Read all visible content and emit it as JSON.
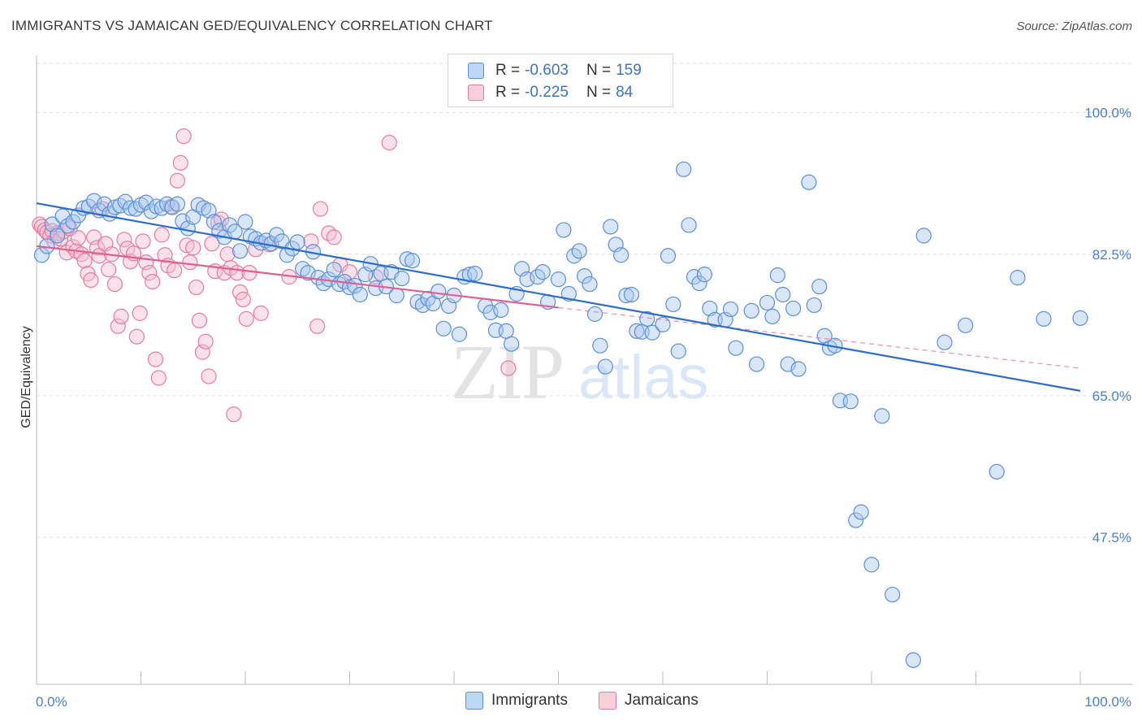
{
  "header": {
    "title": "IMMIGRANTS VS JAMAICAN GED/EQUIVALENCY CORRELATION CHART",
    "source": "Source: ZipAtlas.com"
  },
  "legend": {
    "immigrants": {
      "r_label": "R =",
      "r_value": "-0.603",
      "n_label": "N =",
      "n_value": "159"
    },
    "jamaicans": {
      "r_label": "R =",
      "r_value": "-0.225",
      "n_label": "N =",
      "n_value": "84"
    }
  },
  "bottom_legend": {
    "immigrants": "Immigrants",
    "jamaicans": "Jamaicans"
  },
  "colors": {
    "immigrants_fill": "#a8c8f0",
    "immigrants_stroke": "#5b8fd8",
    "immigrants_line": "#2b6cd0",
    "jamaicans_fill": "#f7bfd0",
    "jamaicans_stroke": "#e77ba0",
    "jamaicans_line": "#e0608e",
    "grid": "#dcdcdc",
    "tick_label": "#4a7fd0"
  },
  "chart_data": {
    "type": "scatter",
    "xlabel": "",
    "ylabel": "GED/Equivalency",
    "xlim": [
      0,
      100
    ],
    "ylim": [
      29.3,
      106.1
    ],
    "x_tick_labels": [
      "0.0%",
      "100.0%"
    ],
    "y_ticks": [
      100.0,
      82.5,
      65.0,
      47.5
    ],
    "y_tick_labels": [
      "100.0%",
      "82.5%",
      "65.0%",
      "47.5%"
    ],
    "grid": true,
    "legend_position": "top-center",
    "watermark": {
      "zip": "ZIP",
      "atlas": "atlas"
    },
    "series": [
      {
        "name": "Immigrants",
        "r": -0.603,
        "n": 159,
        "trend": {
          "x": [
            0,
            100
          ],
          "y": [
            88.8,
            65.6
          ]
        },
        "points": [
          [
            0.5,
            82.4
          ],
          [
            1,
            83.5
          ],
          [
            1.5,
            86.2
          ],
          [
            2,
            84.8
          ],
          [
            2.5,
            87.2
          ],
          [
            3,
            86
          ],
          [
            3.5,
            86.5
          ],
          [
            4,
            87.3
          ],
          [
            4.5,
            88.2
          ],
          [
            5,
            88.4
          ],
          [
            5.5,
            89.1
          ],
          [
            6,
            87.9
          ],
          [
            6.5,
            88.7
          ],
          [
            7,
            87.5
          ],
          [
            7.5,
            88.3
          ],
          [
            8,
            88.5
          ],
          [
            8.5,
            89
          ],
          [
            9,
            88.2
          ],
          [
            9.5,
            88.1
          ],
          [
            10,
            88.6
          ],
          [
            10.5,
            88.9
          ],
          [
            11,
            87.8
          ],
          [
            11.5,
            88.4
          ],
          [
            12,
            88.2
          ],
          [
            12.5,
            88.7
          ],
          [
            13,
            88.3
          ],
          [
            13.5,
            88.7
          ],
          [
            14,
            86.6
          ],
          [
            14.5,
            85.7
          ],
          [
            15,
            87.1
          ],
          [
            15.5,
            88.6
          ],
          [
            16,
            88.2
          ],
          [
            16.5,
            87.9
          ],
          [
            17,
            86.5
          ],
          [
            17.5,
            85.4
          ],
          [
            18,
            84.6
          ],
          [
            18.5,
            86.1
          ],
          [
            19,
            85.3
          ],
          [
            19.5,
            82.9
          ],
          [
            20,
            86.5
          ],
          [
            20.5,
            84.7
          ],
          [
            21,
            84.4
          ],
          [
            21.5,
            83.9
          ],
          [
            22,
            84.2
          ],
          [
            22.5,
            83.8
          ],
          [
            23,
            84.9
          ],
          [
            23.5,
            84.1
          ],
          [
            24,
            82.4
          ],
          [
            24.5,
            83.2
          ],
          [
            25,
            84
          ],
          [
            25.5,
            80.7
          ],
          [
            26,
            80.2
          ],
          [
            26.5,
            82.8
          ],
          [
            27,
            79.6
          ],
          [
            27.5,
            78.9
          ],
          [
            28,
            79.4
          ],
          [
            28.5,
            80.6
          ],
          [
            29,
            78.8
          ],
          [
            29.5,
            79.1
          ],
          [
            30,
            78.4
          ],
          [
            30.5,
            78.6
          ],
          [
            31,
            77.5
          ],
          [
            31.5,
            80
          ],
          [
            32,
            81.3
          ],
          [
            32.5,
            78.3
          ],
          [
            33,
            80.1
          ],
          [
            33.5,
            78.5
          ],
          [
            34,
            80.3
          ],
          [
            34.5,
            77.4
          ],
          [
            35,
            79.5
          ],
          [
            35.5,
            81.9
          ],
          [
            36,
            81.7
          ],
          [
            36.5,
            76.6
          ],
          [
            37,
            76.2
          ],
          [
            37.5,
            77
          ],
          [
            38,
            76.4
          ],
          [
            38.5,
            77.9
          ],
          [
            39,
            73.3
          ],
          [
            39.5,
            76.1
          ],
          [
            40,
            77.4
          ],
          [
            40.5,
            72.6
          ],
          [
            41,
            79.7
          ],
          [
            41.5,
            80
          ],
          [
            42,
            80.1
          ],
          [
            43,
            76.1
          ],
          [
            43.5,
            75.3
          ],
          [
            44,
            73.1
          ],
          [
            44.5,
            75.6
          ],
          [
            45,
            73
          ],
          [
            45.5,
            71.4
          ],
          [
            46,
            77.6
          ],
          [
            46.5,
            80.7
          ],
          [
            47,
            79.4
          ],
          [
            48,
            79.7
          ],
          [
            48.5,
            80.3
          ],
          [
            49,
            76.6
          ],
          [
            50,
            79.4
          ],
          [
            50.5,
            85.5
          ],
          [
            51,
            77.6
          ],
          [
            51.5,
            82.3
          ],
          [
            52,
            82.9
          ],
          [
            52.5,
            79.8
          ],
          [
            53,
            78.8
          ],
          [
            53.5,
            75.1
          ],
          [
            54,
            71.2
          ],
          [
            54.5,
            68.6
          ],
          [
            55,
            85.9
          ],
          [
            55.5,
            83.7
          ],
          [
            56,
            82.4
          ],
          [
            56.5,
            77.4
          ],
          [
            57,
            77.5
          ],
          [
            57.5,
            73
          ],
          [
            58,
            72.9
          ],
          [
            58.5,
            74.5
          ],
          [
            59,
            72.8
          ],
          [
            60,
            73.8
          ],
          [
            60.5,
            82.3
          ],
          [
            61,
            76.3
          ],
          [
            61.5,
            70.5
          ],
          [
            62,
            93
          ],
          [
            62.5,
            86.1
          ],
          [
            63,
            79.7
          ],
          [
            63.5,
            78.9
          ],
          [
            64,
            80
          ],
          [
            64.5,
            75.8
          ],
          [
            65,
            74.4
          ],
          [
            66,
            74.4
          ],
          [
            66.5,
            75.7
          ],
          [
            67,
            70.9
          ],
          [
            68.5,
            75.5
          ],
          [
            69,
            68.9
          ],
          [
            70,
            76.5
          ],
          [
            70.5,
            74.8
          ],
          [
            71,
            79.9
          ],
          [
            71.5,
            77.5
          ],
          [
            72,
            68.9
          ],
          [
            72.5,
            75.8
          ],
          [
            73,
            68.3
          ],
          [
            74,
            91.4
          ],
          [
            74.5,
            76.2
          ],
          [
            75,
            78.5
          ],
          [
            75.5,
            72.4
          ],
          [
            76,
            70.9
          ],
          [
            76.5,
            71.2
          ],
          [
            77,
            64.4
          ],
          [
            78,
            64.3
          ],
          [
            78.5,
            49.6
          ],
          [
            79,
            50.6
          ],
          [
            80,
            44.1
          ],
          [
            81,
            62.5
          ],
          [
            82,
            40.4
          ],
          [
            84,
            32.3
          ],
          [
            85,
            84.8
          ],
          [
            87,
            71.6
          ],
          [
            89,
            73.7
          ],
          [
            92,
            55.6
          ],
          [
            94,
            79.6
          ],
          [
            96.5,
            74.5
          ],
          [
            100,
            74.6
          ]
        ]
      },
      {
        "name": "Jamaicans",
        "r": -0.225,
        "n": 84,
        "trend": {
          "x": [
            0,
            50
          ],
          "y": [
            83.5,
            75.9
          ]
        },
        "trend_extension": {
          "x": [
            50,
            100
          ],
          "y": [
            75.9,
            68.4
          ]
        },
        "points": [
          [
            0.3,
            86.2
          ],
          [
            0.5,
            85.9
          ],
          [
            0.8,
            85.5
          ],
          [
            1,
            85.2
          ],
          [
            1.3,
            84.8
          ],
          [
            1.5,
            85.4
          ],
          [
            1.7,
            84.1
          ],
          [
            2,
            85.1
          ],
          [
            2.3,
            84.4
          ],
          [
            2.6,
            85.3
          ],
          [
            2.9,
            82.7
          ],
          [
            3.2,
            85.7
          ],
          [
            3.5,
            83.4
          ],
          [
            3.8,
            82.9
          ],
          [
            4,
            84.5
          ],
          [
            4.3,
            82.5
          ],
          [
            4.6,
            81.7
          ],
          [
            4.9,
            80.1
          ],
          [
            5.2,
            79.3
          ],
          [
            5.5,
            84.6
          ],
          [
            5.8,
            83.3
          ],
          [
            6,
            82.3
          ],
          [
            6.3,
            88.1
          ],
          [
            6.6,
            83.8
          ],
          [
            6.9,
            80.6
          ],
          [
            7.2,
            82.5
          ],
          [
            7.5,
            78.8
          ],
          [
            7.8,
            73.6
          ],
          [
            8.1,
            74.8
          ],
          [
            8.4,
            84.3
          ],
          [
            8.7,
            83.2
          ],
          [
            9,
            81.6
          ],
          [
            9.3,
            82.6
          ],
          [
            9.6,
            72.3
          ],
          [
            9.9,
            75.2
          ],
          [
            10.2,
            84.1
          ],
          [
            10.5,
            81.5
          ],
          [
            10.8,
            80.2
          ],
          [
            11.1,
            79.1
          ],
          [
            11.4,
            69.5
          ],
          [
            11.7,
            67.2
          ],
          [
            12,
            84.9
          ],
          [
            12.3,
            82.4
          ],
          [
            12.6,
            81.1
          ],
          [
            12.9,
            88.4
          ],
          [
            13.2,
            80.5
          ],
          [
            13.5,
            91.6
          ],
          [
            13.8,
            93.8
          ],
          [
            14.1,
            97.1
          ],
          [
            14.4,
            83.6
          ],
          [
            14.7,
            81.5
          ],
          [
            15,
            83.3
          ],
          [
            15.3,
            78.4
          ],
          [
            15.6,
            74.3
          ],
          [
            15.9,
            70.4
          ],
          [
            16.2,
            71.7
          ],
          [
            16.5,
            67.4
          ],
          [
            16.8,
            83.8
          ],
          [
            17.1,
            80.4
          ],
          [
            17.4,
            86.4
          ],
          [
            17.7,
            86.8
          ],
          [
            18,
            80.2
          ],
          [
            18.3,
            82.5
          ],
          [
            18.6,
            80.8
          ],
          [
            18.9,
            62.7
          ],
          [
            19.2,
            80.2
          ],
          [
            19.5,
            77.8
          ],
          [
            19.8,
            76.9
          ],
          [
            20.1,
            74.5
          ],
          [
            20.4,
            80.2
          ],
          [
            21,
            83.1
          ],
          [
            21.5,
            75.2
          ],
          [
            22.3,
            83.7
          ],
          [
            24.2,
            79.7
          ],
          [
            26.3,
            84.1
          ],
          [
            26.9,
            73.6
          ],
          [
            27.2,
            88.1
          ],
          [
            28,
            85.1
          ],
          [
            28.5,
            84.6
          ],
          [
            29.1,
            81.2
          ],
          [
            30,
            80.3
          ],
          [
            32.5,
            79.7
          ],
          [
            33.8,
            96.3
          ],
          [
            45.2,
            68.4
          ]
        ]
      }
    ]
  }
}
